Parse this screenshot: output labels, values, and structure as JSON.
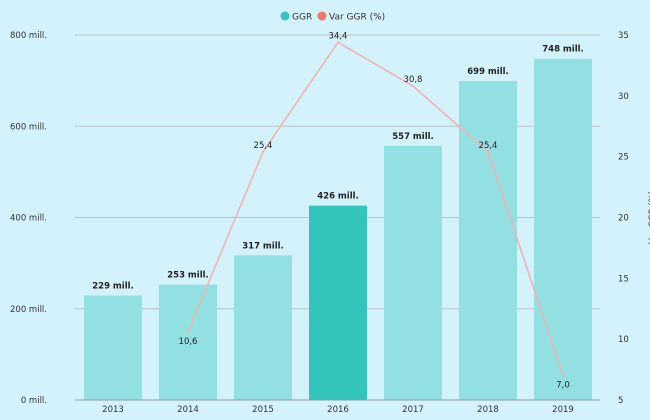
{
  "chart_data": {
    "type": "bar",
    "categories": [
      "2013",
      "2014",
      "2015",
      "2016",
      "2017",
      "2018",
      "2019"
    ],
    "series": [
      {
        "name": "GGR",
        "type": "bar",
        "axis": "left",
        "values": [
          229,
          253,
          317,
          426,
          557,
          699,
          748
        ],
        "labels": [
          "229 mill.",
          "253 mill.",
          "317 mill.",
          "426 mill.",
          "557 mill.",
          "699 mill.",
          "748 mill."
        ]
      },
      {
        "name": "Var GGR (%)",
        "type": "line",
        "axis": "right",
        "values": [
          null,
          10.6,
          25.4,
          34.4,
          30.8,
          25.4,
          7.0
        ],
        "labels": [
          "",
          "10,6",
          "25,4",
          "34,4",
          "30,8",
          "25,4",
          "7,0"
        ]
      }
    ],
    "highlight_index": 3,
    "y_left": {
      "range": [
        0,
        800
      ],
      "ticks": [
        0,
        200,
        400,
        600,
        800
      ],
      "tick_labels": [
        "0 mill.",
        "200 mill.",
        "400 mill.",
        "600 mill.",
        "800 mill."
      ]
    },
    "y_right": {
      "label": "Var GGR (%)",
      "range": [
        5,
        35
      ],
      "ticks": [
        5,
        10,
        15,
        20,
        25,
        30,
        35
      ],
      "tick_labels": [
        "5",
        "10",
        "15",
        "20",
        "25",
        "30",
        "35"
      ]
    },
    "grid": true,
    "legend_position": "top-center",
    "colors": {
      "bar": "#93e0e3",
      "bar_highlight": "#33c5bb",
      "line": "#f0b3b3",
      "legend_line": "#f27575",
      "grid": "#b9c3c7",
      "background": "#d4f2fb"
    }
  }
}
